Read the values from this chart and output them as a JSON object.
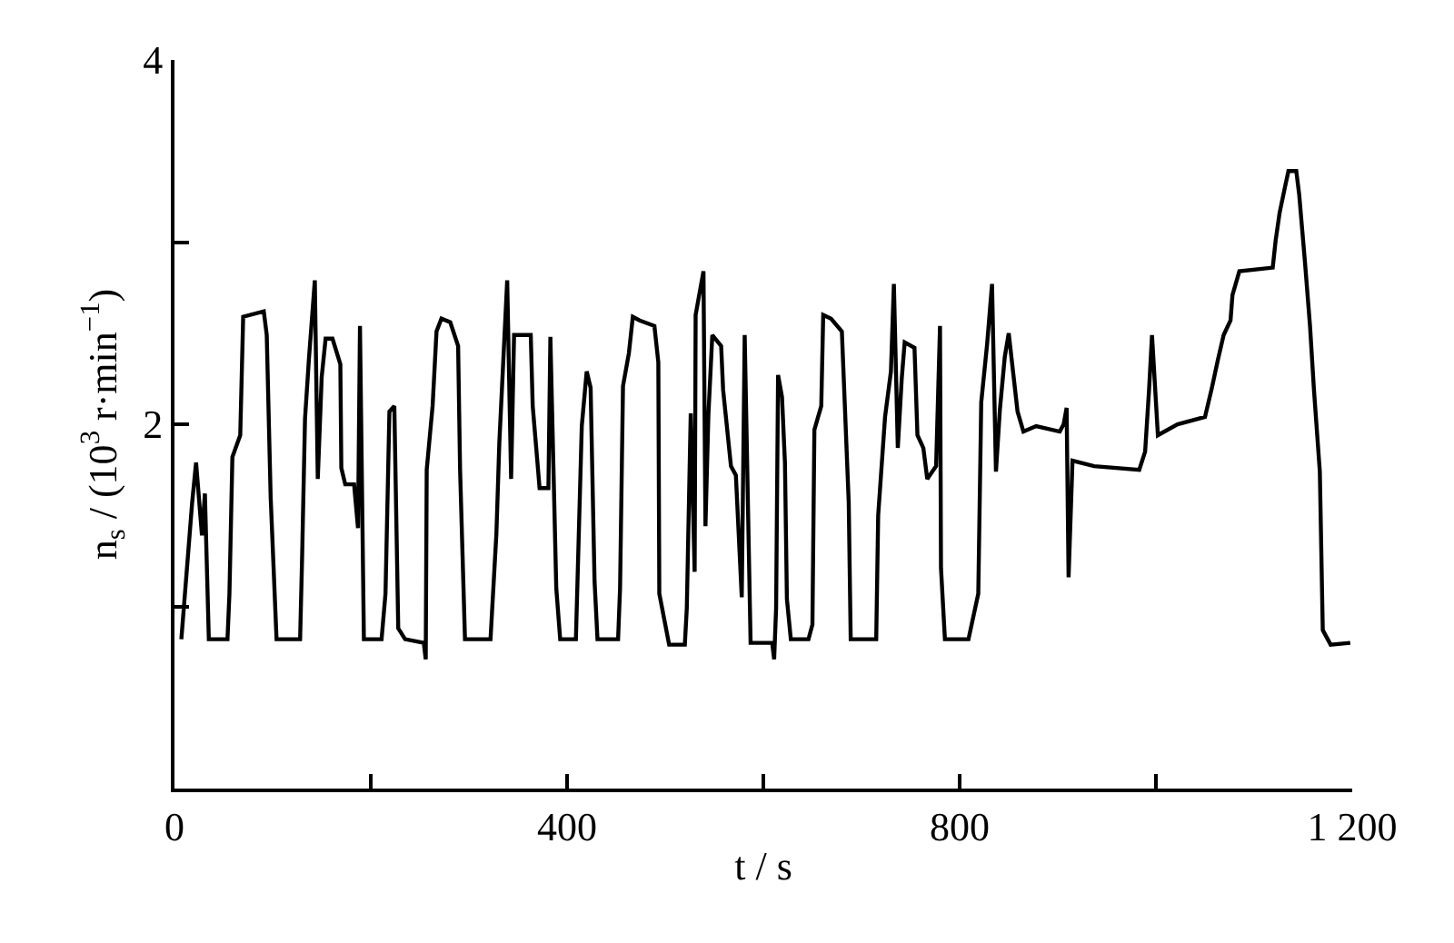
{
  "chart_data": {
    "type": "line",
    "xlabel": "t / s",
    "ylabel": "n$_{s}$ / (10$^{3}$ r·min$^{−1}$)",
    "xlim": [
      0,
      1200
    ],
    "ylim": [
      0,
      4
    ],
    "xticks": [
      0,
      {
        "value": 200,
        "label": null
      },
      400,
      {
        "value": 600,
        "label": null
      },
      800,
      {
        "value": 1000,
        "label": null
      },
      {
        "value": 1200,
        "label": "1 200"
      }
    ],
    "yticks": [
      {
        "value": 1,
        "label": null
      },
      2,
      {
        "value": 3,
        "label": null
      },
      4
    ],
    "marker": "none",
    "line_style": "solid",
    "series": [
      {
        "color": "#000000",
        "x": [
          7,
          18,
          22,
          28,
          31,
          35,
          54,
          56,
          59,
          67,
          70,
          91,
          94,
          98,
          104,
          128,
          130,
          133,
          137,
          143,
          146,
          150,
          154,
          161,
          169,
          170,
          174,
          183,
          187,
          189,
          193,
          211,
          215,
          219,
          224,
          228,
          235,
          254,
          256,
          257,
          263,
          267,
          272,
          281,
          289,
          291,
          296,
          322,
          328,
          331,
          339,
          343,
          346,
          363,
          365,
          372,
          381,
          383,
          389,
          393,
          409,
          415,
          420,
          424,
          428,
          431,
          452,
          454,
          457,
          463,
          467,
          474,
          489,
          493,
          494,
          504,
          520,
          522,
          526,
          530,
          531,
          539,
          541,
          544,
          548,
          557,
          559,
          567,
          572,
          578,
          581,
          587,
          609,
          611,
          613,
          615,
          619,
          622,
          624,
          628,
          646,
          650,
          652,
          659,
          661,
          669,
          680,
          687,
          689,
          715,
          717,
          724,
          730,
          733,
          737,
          741,
          744,
          754,
          757,
          763,
          767,
          776,
          780,
          781,
          785,
          809,
          819,
          822,
          828,
          833,
          837,
          841,
          846,
          850,
          859,
          865,
          878,
          902,
          906,
          909,
          911,
          915,
          937,
          983,
          989,
          993,
          996,
          1002,
          1022,
          1050,
          1057,
          1063,
          1069,
          1076,
          1078,
          1085,
          1119,
          1122,
          1126,
          1131,
          1135,
          1143,
          1146,
          1152,
          1157,
          1161,
          1167,
          1170,
          1178,
          1198
        ],
        "values": [
          0.82,
          1.57,
          1.79,
          1.39,
          1.62,
          0.82,
          0.82,
          1.07,
          1.82,
          1.94,
          2.59,
          2.62,
          2.49,
          1.6,
          0.82,
          0.82,
          1.26,
          2.03,
          2.36,
          2.79,
          1.7,
          2.26,
          2.47,
          2.47,
          2.33,
          1.76,
          1.67,
          1.67,
          1.43,
          2.54,
          0.82,
          0.82,
          1.07,
          2.07,
          2.1,
          0.88,
          0.82,
          0.8,
          0.71,
          1.75,
          2.1,
          2.51,
          2.58,
          2.56,
          2.43,
          1.75,
          0.82,
          0.82,
          1.4,
          1.9,
          2.79,
          1.7,
          2.49,
          2.49,
          2.1,
          1.65,
          1.65,
          2.48,
          1.1,
          0.82,
          0.82,
          1.99,
          2.29,
          2.2,
          1.14,
          0.82,
          0.82,
          1.1,
          2.21,
          2.39,
          2.59,
          2.57,
          2.54,
          2.34,
          1.07,
          0.79,
          0.79,
          0.99,
          2.06,
          1.19,
          2.6,
          2.84,
          1.44,
          2.05,
          2.49,
          2.43,
          2.19,
          1.77,
          1.72,
          1.05,
          2.49,
          0.8,
          0.8,
          0.71,
          0.99,
          2.27,
          2.15,
          1.79,
          1.04,
          0.82,
          0.82,
          0.9,
          1.97,
          2.1,
          2.6,
          2.58,
          2.51,
          1.57,
          0.82,
          0.82,
          1.5,
          2.04,
          2.29,
          2.77,
          1.87,
          2.25,
          2.45,
          2.42,
          1.94,
          1.87,
          1.7,
          1.77,
          2.54,
          1.21,
          0.82,
          0.82,
          1.07,
          2.12,
          2.44,
          2.77,
          1.74,
          2.08,
          2.37,
          2.5,
          2.07,
          1.96,
          1.99,
          1.96,
          2.0,
          2.09,
          1.16,
          1.8,
          1.77,
          1.75,
          1.85,
          2.19,
          2.49,
          1.94,
          2.0,
          2.04,
          2.2,
          2.35,
          2.49,
          2.57,
          2.71,
          2.84,
          2.86,
          3.01,
          3.16,
          3.29,
          3.39,
          3.39,
          3.26,
          2.88,
          2.54,
          2.19,
          1.74,
          0.87,
          0.79,
          0.8
        ]
      }
    ]
  }
}
